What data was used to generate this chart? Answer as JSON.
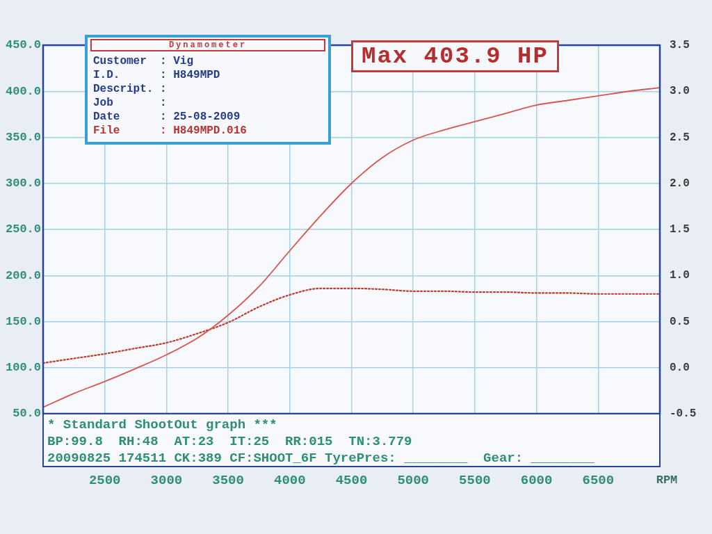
{
  "chart_data": {
    "type": "line",
    "annotations": [
      "Dynamometer",
      "Customer  : Vig",
      "I.D.      : H849MPD",
      "Descript. :",
      "Job       :",
      "Date      : 25-08-2009",
      "File      : H849MPD.016",
      "Max 403.9 HP",
      "* Standard ShootOut graph ***",
      "BP:99.8  RH:48  AT:23  IT:25  RR:015  TN:3.779",
      "20090825 174511 CK:389 CF:SHOOT_6F TyrePres: ________  Gear: ________"
    ],
    "xlabel": "RPM",
    "x": [
      2000,
      2250,
      2500,
      2750,
      3000,
      3250,
      3500,
      3750,
      4000,
      4250,
      4500,
      4750,
      5000,
      5250,
      5500,
      5750,
      6000,
      6250,
      6500,
      6750,
      7000
    ],
    "series": [
      {
        "color": "#d9534f",
        "values": [
          57,
          72,
          85,
          99,
          114,
          132,
          157,
          188,
          227,
          265,
          300,
          328,
          347,
          358,
          367,
          376,
          385,
          390,
          395,
          400,
          403.9
        ]
      },
      {
        "color": "#c0392b",
        "axis": "y2",
        "line_style": "dotted",
        "values": [
          0.05,
          0.1,
          0.15,
          0.21,
          0.27,
          0.37,
          0.49,
          0.66,
          0.79,
          0.86,
          0.86,
          0.85,
          0.83,
          0.83,
          0.82,
          0.82,
          0.81,
          0.81,
          0.8,
          0.8,
          0.8
        ]
      }
    ],
    "xlim": [
      2000,
      7000
    ],
    "xticks": [
      2500,
      3000,
      3500,
      4000,
      4500,
      5000,
      5500,
      6000,
      6500
    ],
    "ylim": [
      50,
      450
    ],
    "yticks": [
      {
        "value": 50,
        "label": "50.0"
      },
      {
        "value": 100,
        "label": "100.0"
      },
      {
        "value": 150,
        "label": "150.0"
      },
      {
        "value": 200,
        "label": "200.0"
      },
      {
        "value": 250,
        "label": "250.0"
      },
      {
        "value": 300,
        "label": "300.0"
      },
      {
        "value": 350,
        "label": "350.0"
      },
      {
        "value": 400,
        "label": "400.0"
      },
      {
        "value": 450,
        "label": "450.0"
      }
    ],
    "y2lim": [
      -0.5,
      3.5
    ],
    "y2ticks": [
      {
        "value": -0.5,
        "label": "-0.5"
      },
      {
        "value": 0,
        "label": "0.0"
      },
      {
        "value": 0.5,
        "label": "0.5"
      },
      {
        "value": 1,
        "label": "1.0"
      },
      {
        "value": 1.5,
        "label": "1.5"
      },
      {
        "value": 2,
        "label": "2.0"
      },
      {
        "value": 2.5,
        "label": "2.5"
      },
      {
        "value": 3,
        "label": "3.0"
      },
      {
        "value": 3.5,
        "label": "3.5"
      }
    ],
    "grid": true,
    "marker": "none",
    "line_style": "solid"
  }
}
